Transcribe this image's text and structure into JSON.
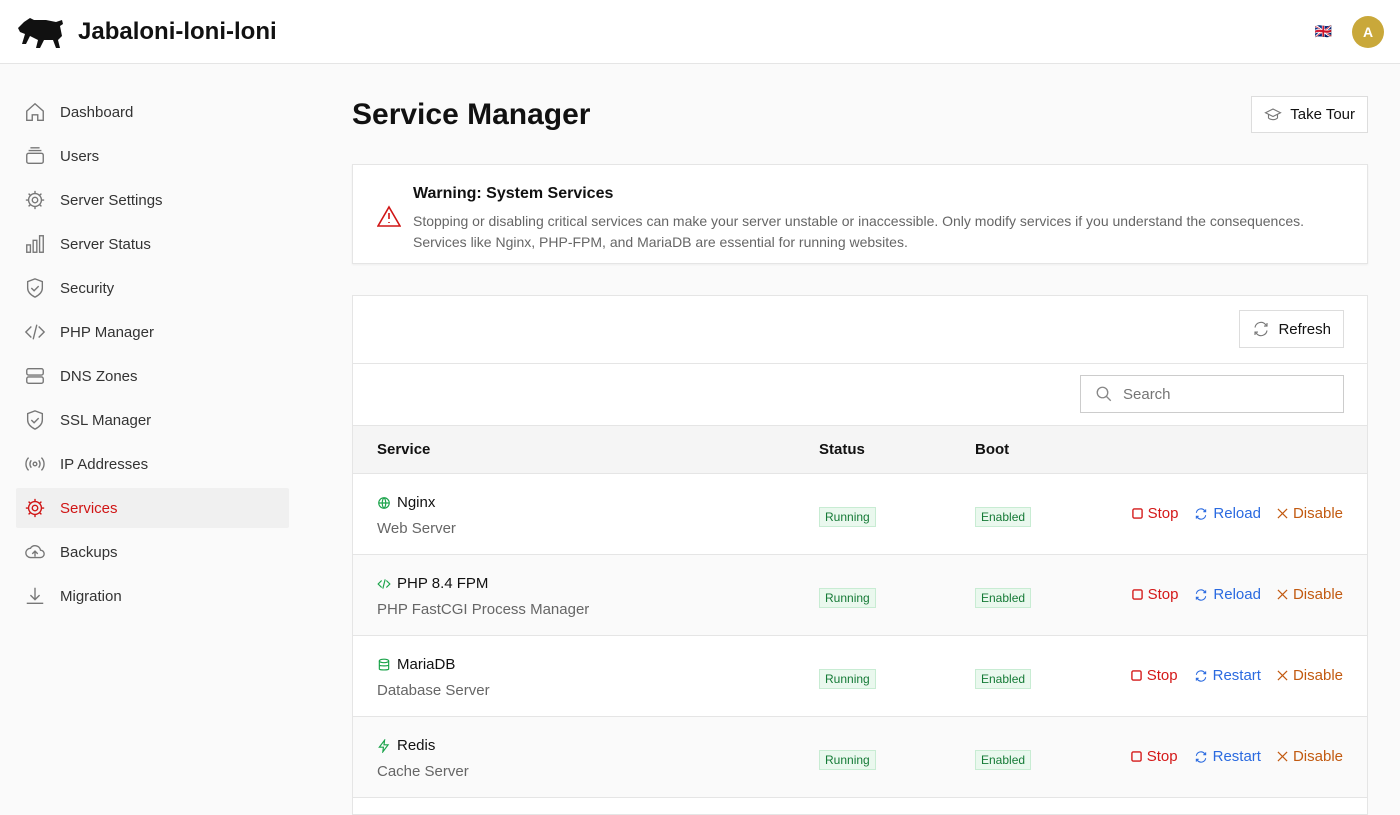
{
  "header": {
    "brand": "Jabaloni-loni-loni",
    "flag": "🇬🇧",
    "avatar": "A"
  },
  "sidebar": {
    "items": [
      {
        "label": "Dashboard",
        "icon": "home-icon"
      },
      {
        "label": "Users",
        "icon": "users-icon"
      },
      {
        "label": "Server Settings",
        "icon": "gear-icon"
      },
      {
        "label": "Server Status",
        "icon": "bar-chart-icon"
      },
      {
        "label": "Security",
        "icon": "shield-icon"
      },
      {
        "label": "PHP Manager",
        "icon": "code-icon"
      },
      {
        "label": "DNS Zones",
        "icon": "server-icon"
      },
      {
        "label": "SSL Manager",
        "icon": "shield-check-icon"
      },
      {
        "label": "IP Addresses",
        "icon": "broadcast-icon"
      },
      {
        "label": "Services",
        "icon": "gear-icon",
        "active": true
      },
      {
        "label": "Backups",
        "icon": "cloud-upload-icon"
      },
      {
        "label": "Migration",
        "icon": "download-icon"
      }
    ]
  },
  "main": {
    "title": "Service Manager",
    "tour": "Take Tour",
    "warning": {
      "title": "Warning: System Services",
      "text": "Stopping or disabling critical services can make your server unstable or inaccessible. Only modify services if you understand the consequences. Services like Nginx, PHP-FPM, and MariaDB are essential for running websites."
    },
    "refresh": "Refresh",
    "search_placeholder": "Search",
    "columns": [
      "Service",
      "Status",
      "Boot"
    ],
    "rows": [
      {
        "name": "Nginx",
        "desc": "Web Server",
        "icon": "globe-icon",
        "status": "Running",
        "boot": "Enabled",
        "actions": [
          "Stop",
          "Reload",
          "Disable"
        ]
      },
      {
        "name": "PHP 8.4 FPM",
        "desc": "PHP FastCGI Process Manager",
        "icon": "code-icon",
        "status": "Running",
        "boot": "Enabled",
        "actions": [
          "Stop",
          "Reload",
          "Disable"
        ]
      },
      {
        "name": "MariaDB",
        "desc": "Database Server",
        "icon": "database-icon",
        "status": "Running",
        "boot": "Enabled",
        "actions": [
          "Stop",
          "Restart",
          "Disable"
        ]
      },
      {
        "name": "Redis",
        "desc": "Cache Server",
        "icon": "bolt-icon",
        "status": "Running",
        "boot": "Enabled",
        "actions": [
          "Stop",
          "Restart",
          "Disable"
        ]
      }
    ]
  },
  "colors": {
    "accent": "#d01515",
    "running": "#157a36",
    "reload": "#2a6ae0",
    "disable": "#c25a10"
  }
}
